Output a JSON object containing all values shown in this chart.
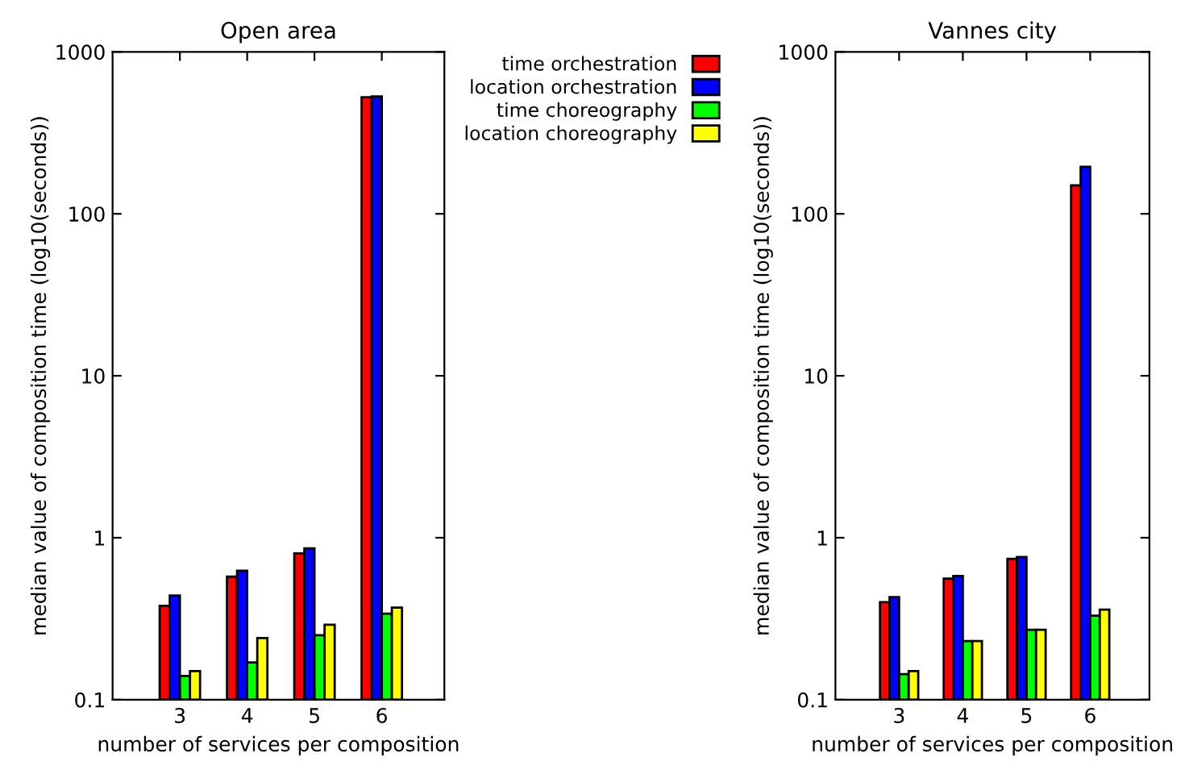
{
  "chart_data": [
    {
      "type": "bar",
      "title": "Open area",
      "xlabel": "number of services per composition",
      "ylabel": "median value of composition time (log10(seconds))",
      "categories": [
        "3",
        "4",
        "5",
        "6"
      ],
      "log": "y",
      "ylim": [
        0.1,
        1000
      ],
      "yticks": [
        0.1,
        1,
        10,
        100,
        1000
      ],
      "legend": "top right",
      "grid": false,
      "series": [
        {
          "name": "time orchestration",
          "color": "#ff0000",
          "values": [
            0.38,
            0.575,
            0.8,
            525
          ]
        },
        {
          "name": "location orchestration",
          "color": "#0000ff",
          "values": [
            0.44,
            0.625,
            0.86,
            530
          ]
        },
        {
          "name": "time choreography",
          "color": "#00ff00",
          "values": [
            0.14,
            0.17,
            0.25,
            0.34
          ]
        },
        {
          "name": "location choreography",
          "color": "#ffff00",
          "values": [
            0.15,
            0.24,
            0.29,
            0.37
          ]
        }
      ]
    },
    {
      "type": "bar",
      "title": "Vannes city",
      "xlabel": "number of services per composition",
      "ylabel": "median value of composition time (log10(seconds))",
      "categories": [
        "3",
        "4",
        "5",
        "6"
      ],
      "log": "y",
      "ylim": [
        0.1,
        1000
      ],
      "yticks": [
        0.1,
        1,
        10,
        100,
        1000
      ],
      "legend": false,
      "grid": false,
      "series": [
        {
          "color": "#ff0000",
          "values": [
            0.4,
            0.56,
            0.74,
            150
          ]
        },
        {
          "color": "#0000ff",
          "values": [
            0.43,
            0.58,
            0.76,
            195
          ]
        },
        {
          "color": "#00ff00",
          "values": [
            0.144,
            0.23,
            0.27,
            0.33
          ]
        },
        {
          "color": "#ffff00",
          "values": [
            0.15,
            0.23,
            0.27,
            0.36
          ]
        }
      ]
    }
  ]
}
